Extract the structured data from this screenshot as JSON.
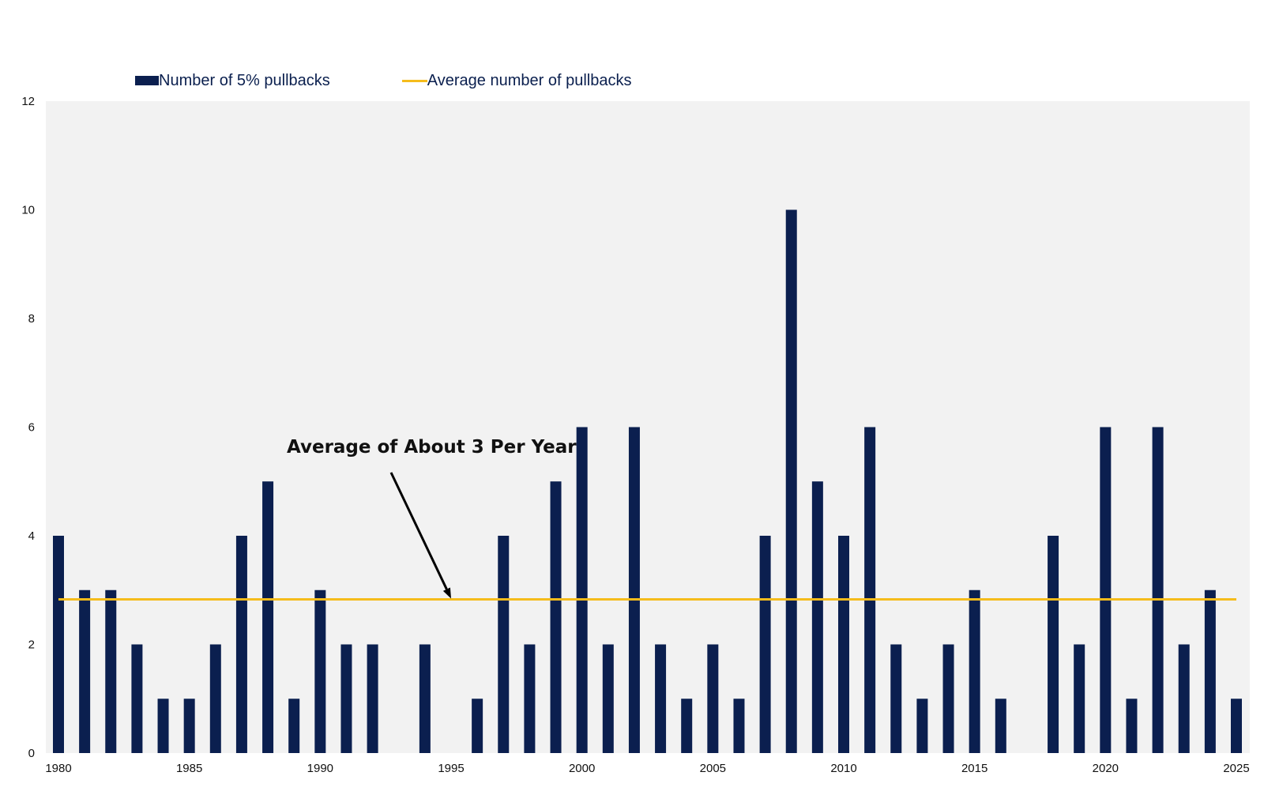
{
  "legend": {
    "bar_label": "Number of 5% pullbacks",
    "line_label": "Average number of pullbacks"
  },
  "annotation": "Average of About 3 Per Year",
  "colors": {
    "bar": "#0b1f4f",
    "average_line": "#f5bc1c",
    "plot_background": "#f2f2f2",
    "legend_text": "#0a1f4e"
  },
  "chart_data": {
    "type": "bar",
    "x": [
      1980,
      1981,
      1982,
      1983,
      1984,
      1985,
      1986,
      1987,
      1988,
      1989,
      1990,
      1991,
      1992,
      1993,
      1994,
      1995,
      1996,
      1997,
      1998,
      1999,
      2000,
      2001,
      2002,
      2003,
      2004,
      2005,
      2006,
      2007,
      2008,
      2009,
      2010,
      2011,
      2012,
      2013,
      2014,
      2015,
      2016,
      2017,
      2018,
      2019,
      2020,
      2021,
      2022,
      2023,
      2024,
      2025
    ],
    "series": [
      {
        "name": "Number of 5% pullbacks",
        "type": "bar",
        "values": [
          4,
          3,
          3,
          2,
          1,
          1,
          2,
          4,
          5,
          1,
          3,
          2,
          2,
          0,
          2,
          0,
          1,
          4,
          2,
          5,
          6,
          2,
          6,
          2,
          1,
          2,
          1,
          4,
          10,
          5,
          4,
          6,
          2,
          1,
          2,
          3,
          1,
          0,
          4,
          2,
          6,
          1,
          6,
          2,
          3,
          1
        ]
      },
      {
        "name": "Average number of pullbacks",
        "type": "line",
        "value": 2.83
      }
    ],
    "x_tick_labels": [
      "1980",
      "1985",
      "1990",
      "1995",
      "2000",
      "2005",
      "2010",
      "2015",
      "2020",
      "2025"
    ],
    "y_tick_labels": [
      "0",
      "2",
      "4",
      "6",
      "8",
      "10",
      "12"
    ],
    "ylim": [
      0,
      12
    ],
    "xlim": [
      1980,
      2025
    ],
    "grid": false,
    "legend_position": "top-left",
    "annotation": {
      "text": "Average of About 3 Per Year",
      "arrow_target_x": 1995,
      "arrow_target_y": 2.83
    }
  }
}
